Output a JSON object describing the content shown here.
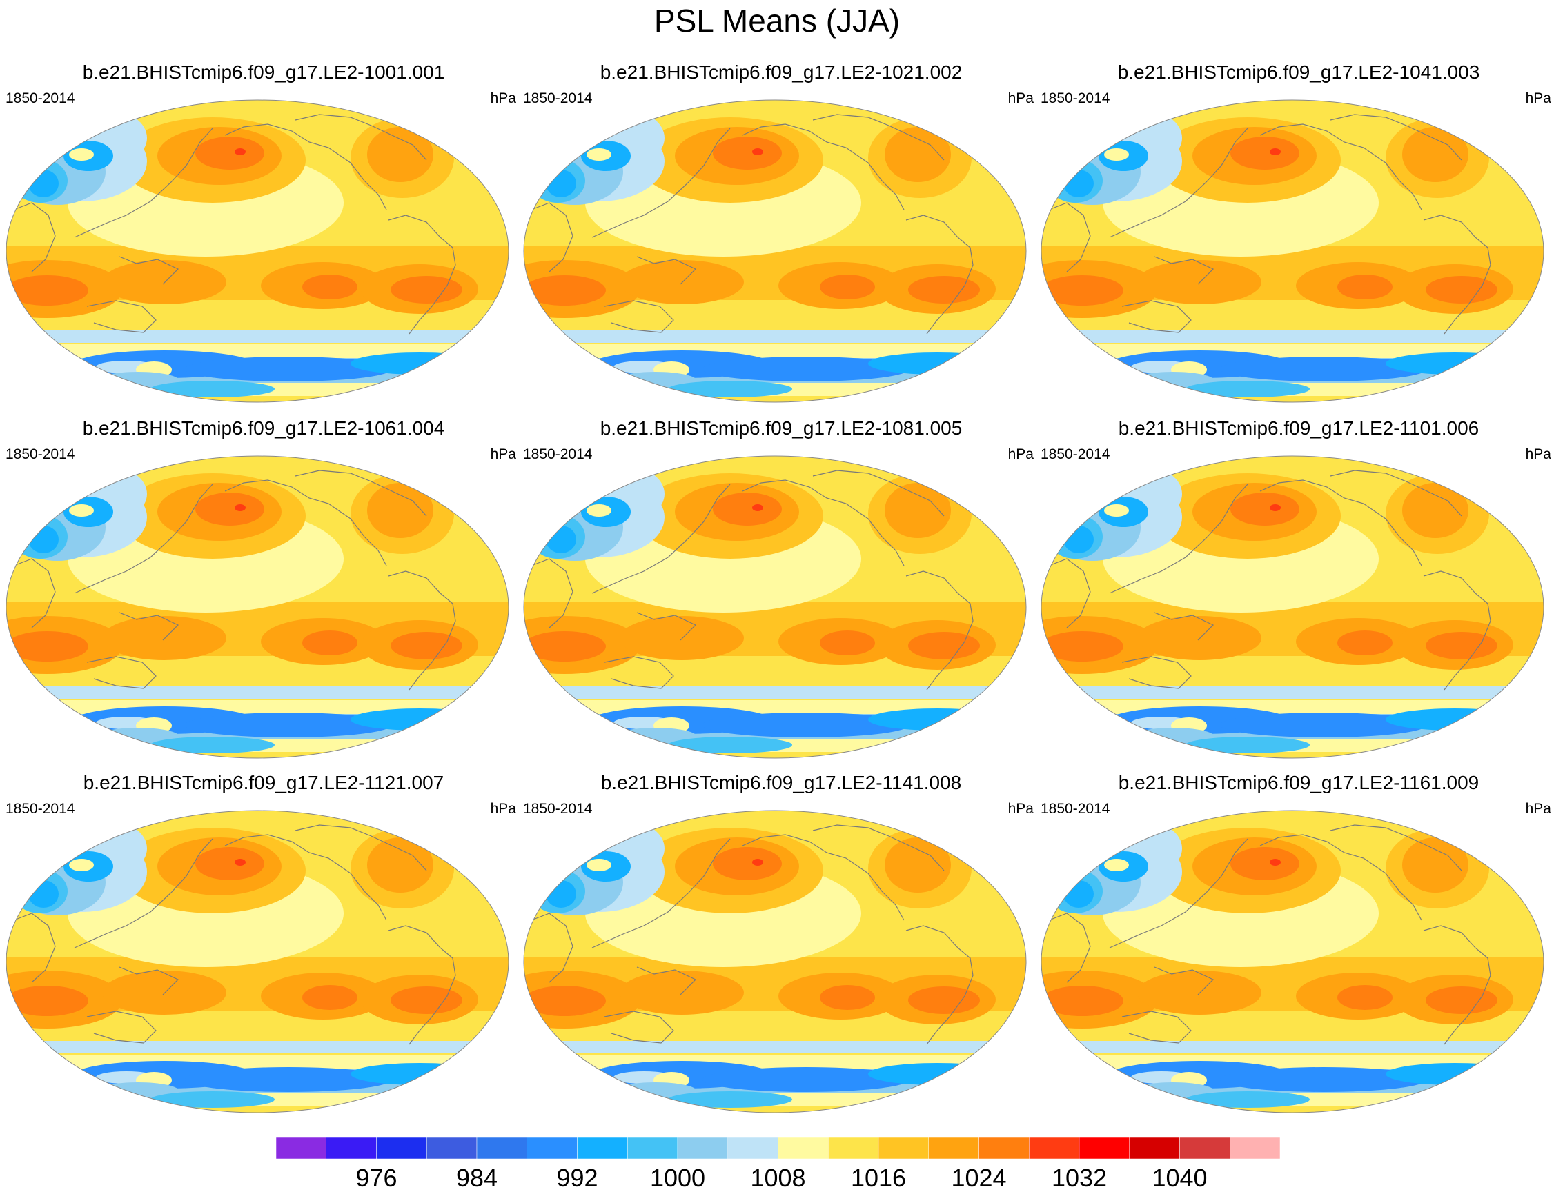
{
  "title": "PSL Means (JJA)",
  "units": "hPa",
  "period": "1850-2014",
  "panels": [
    {
      "case": "b.e21.BHISTcmip6.f09_g17.LE2-1001.001",
      "period": "1850-2014",
      "units": "hPa"
    },
    {
      "case": "b.e21.BHISTcmip6.f09_g17.LE2-1021.002",
      "period": "1850-2014",
      "units": "hPa"
    },
    {
      "case": "b.e21.BHISTcmip6.f09_g17.LE2-1041.003",
      "period": "1850-2014",
      "units": "hPa"
    },
    {
      "case": "b.e21.BHISTcmip6.f09_g17.LE2-1061.004",
      "period": "1850-2014",
      "units": "hPa"
    },
    {
      "case": "b.e21.BHISTcmip6.f09_g17.LE2-1081.005",
      "period": "1850-2014",
      "units": "hPa"
    },
    {
      "case": "b.e21.BHISTcmip6.f09_g17.LE2-1101.006",
      "period": "1850-2014",
      "units": "hPa"
    },
    {
      "case": "b.e21.BHISTcmip6.f09_g17.LE2-1121.007",
      "period": "1850-2014",
      "units": "hPa"
    },
    {
      "case": "b.e21.BHISTcmip6.f09_g17.LE2-1141.008",
      "period": "1850-2014",
      "units": "hPa"
    },
    {
      "case": "b.e21.BHISTcmip6.f09_g17.LE2-1161.009",
      "period": "1850-2014",
      "units": "hPa"
    }
  ],
  "colorbar": {
    "colors": [
      "#8a2be2",
      "#3a1bf5",
      "#1c2ef0",
      "#3d5ce0",
      "#2f78ee",
      "#2a8fff",
      "#14b0ff",
      "#44c2f5",
      "#8dcdef",
      "#bfe3f7",
      "#fffaa0",
      "#fde44a",
      "#ffc423",
      "#ffa310",
      "#ff7f0f",
      "#ff3c12",
      "#ff0000",
      "#d60000",
      "#d63a3a",
      "#ffb1b1"
    ],
    "tick_labels": [
      "976",
      "984",
      "992",
      "1000",
      "1008",
      "1016",
      "1024",
      "1032",
      "1040"
    ]
  },
  "map_colors": {
    "ocean_base": "#fde44a",
    "coast": "#7a7a7a",
    "frame": "#888888"
  }
}
